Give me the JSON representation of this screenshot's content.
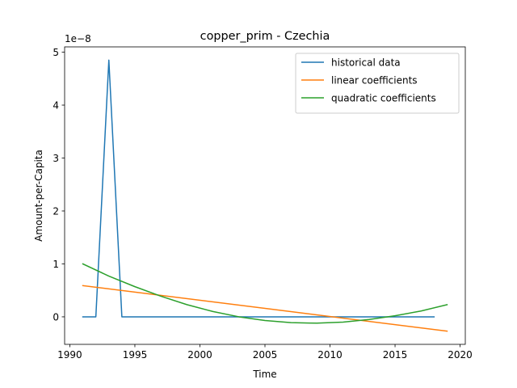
{
  "chart_data": {
    "type": "line",
    "title": "copper_prim - Czechia",
    "xlabel": "Time",
    "ylabel": "Amount-per-Capita",
    "y_offset_label": "1e−8",
    "xlim": [
      1989.6,
      2020.4
    ],
    "ylim": [
      -0.52,
      5.1
    ],
    "x_ticks": [
      1990,
      1995,
      2000,
      2005,
      2010,
      2015,
      2020
    ],
    "y_ticks": [
      0,
      1,
      2,
      3,
      4,
      5
    ],
    "grid": false,
    "legend_position": "top-right",
    "series": [
      {
        "name": "historical data",
        "color": "#1f77b4",
        "x": [
          1991,
          1992,
          1993,
          1994,
          1995,
          2000,
          2005,
          2010,
          2015,
          2018
        ],
        "y": [
          0,
          0,
          4.85,
          0,
          0,
          0,
          0,
          0,
          0,
          0
        ]
      },
      {
        "name": "linear coefficients",
        "color": "#ff7f0e",
        "x": [
          1991,
          2019
        ],
        "y": [
          0.59,
          -0.27
        ]
      },
      {
        "name": "quadratic coefficients",
        "color": "#2ca02c",
        "x": [
          1991,
          1993,
          1995,
          1997,
          1999,
          2001,
          2003,
          2005,
          2007,
          2009,
          2011,
          2013,
          2015,
          2017,
          2019
        ],
        "y": [
          1.0,
          0.77,
          0.57,
          0.39,
          0.23,
          0.1,
          0.0,
          -0.07,
          -0.11,
          -0.12,
          -0.1,
          -0.05,
          0.02,
          0.11,
          0.23
        ]
      }
    ]
  }
}
